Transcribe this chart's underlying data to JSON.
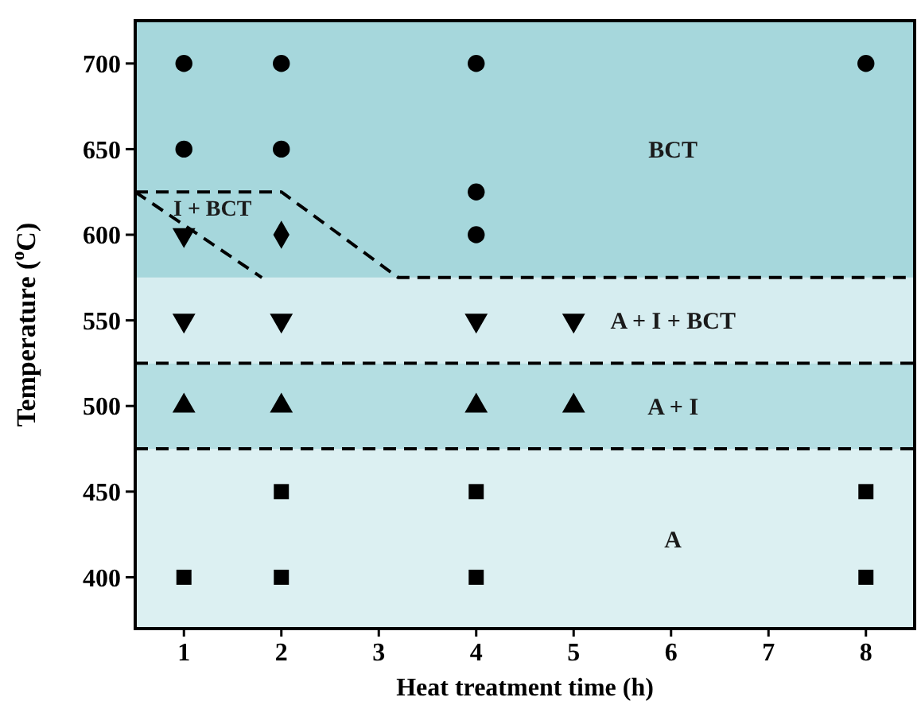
{
  "chart_data": {
    "type": "scatter",
    "xlabel": "Heat treatment time (h)",
    "ylabel": "Temperature ($^{o}$C)",
    "xlim": [
      0.5,
      8.5
    ],
    "xticks": [
      1,
      2,
      3,
      4,
      5,
      6,
      7,
      8
    ],
    "ylim": [
      370,
      725
    ],
    "yticks": [
      400,
      450,
      500,
      550,
      600,
      650,
      700
    ],
    "grid": false,
    "bands": [
      {
        "axis": "y",
        "from": 370,
        "to": 475,
        "color": "#dcf0f2",
        "label": "A"
      },
      {
        "axis": "y",
        "from": 475,
        "to": 525,
        "color": "#b4dee2",
        "label": "A + I"
      },
      {
        "axis": "y",
        "from": 525,
        "to": 575,
        "color": "#d6edf0",
        "label": "A + I + BCT"
      },
      {
        "axis": "y",
        "from": 575,
        "to": 725,
        "color": "#a6d7dc",
        "label": "BCT"
      }
    ],
    "ref_lines": [
      {
        "axis": "y",
        "value": 475,
        "line_style": "dashed",
        "color": "#000000"
      },
      {
        "axis": "y",
        "value": 525,
        "line_style": "dashed",
        "color": "#000000"
      }
    ],
    "series": [
      {
        "type": "line",
        "color": "#000000",
        "line_style": "dashed",
        "x": [
          0.5,
          2,
          3.2,
          8.5
        ],
        "values": [
          625,
          625,
          575,
          575
        ]
      },
      {
        "type": "line",
        "name": "I + BCT",
        "color": "#000000",
        "line_style": "dashed",
        "x": [
          0.5,
          1.8
        ],
        "values": [
          625,
          575
        ]
      },
      {
        "color": "#000000",
        "marker": "circle",
        "x": [
          1,
          2,
          4,
          8,
          1,
          2,
          4,
          4
        ],
        "values": [
          700,
          700,
          700,
          700,
          650,
          650,
          625,
          600
        ]
      },
      {
        "color": "#000000",
        "marker": "triangle-down",
        "x": [
          1,
          1,
          2,
          4,
          5
        ],
        "values": [
          600,
          550,
          550,
          550,
          550
        ]
      },
      {
        "color": "#000000",
        "marker": "diamond",
        "x": [
          2
        ],
        "values": [
          600
        ]
      },
      {
        "color": "#000000",
        "marker": "triangle",
        "x": [
          1,
          2,
          4,
          5
        ],
        "values": [
          500,
          500,
          500,
          500
        ]
      },
      {
        "color": "#000000",
        "marker": "square",
        "x": [
          1,
          2,
          2,
          4,
          4,
          8,
          8
        ],
        "values": [
          400,
          400,
          450,
          450,
          400,
          450,
          400
        ]
      }
    ]
  }
}
